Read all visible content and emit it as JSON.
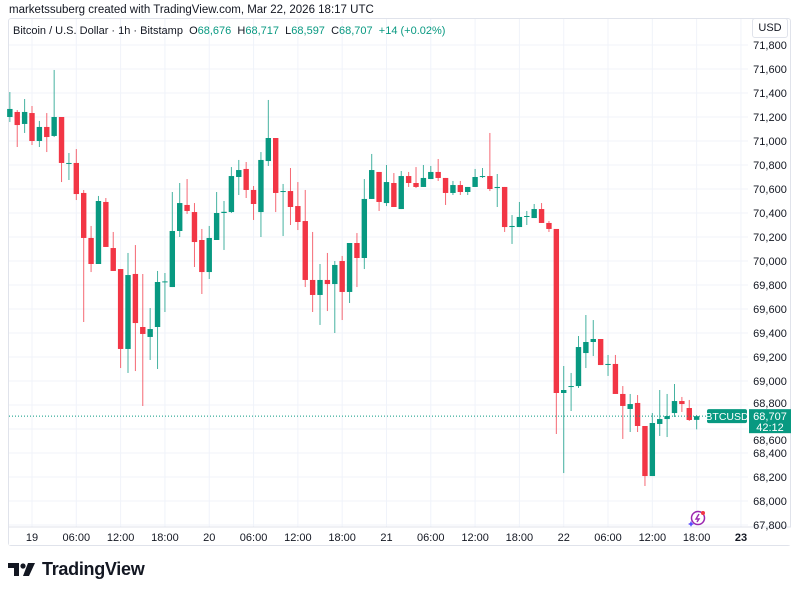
{
  "attribution": "marketssuberg created with TradingView.com, Mar 22, 2026 18:17 UTC",
  "legend": {
    "symbol": "Bitcoin / U.S. Dollar · 1h · Bitstamp",
    "o_label": "O",
    "o": "68,676",
    "h_label": "H",
    "h": "68,717",
    "l_label": "L",
    "l": "68,597",
    "c_label": "C",
    "c": "68,707",
    "change": "+14 (+0.02%)"
  },
  "currency_button": "USD",
  "last_price": {
    "symbol_tag": "BTCUSD",
    "price": "68,707",
    "countdown": "42:12"
  },
  "logo_text": "TradingView",
  "colors": {
    "up": "#089981",
    "down": "#f23645",
    "grid": "#f0f3fa",
    "text": "#131722",
    "accent_icon": "#9c27b0"
  },
  "icons": [
    "tradingview-logo-icon",
    "sparkle-lightning-icon"
  ],
  "chart_data": {
    "type": "candlestick",
    "interval": "1h",
    "ylim": [
      67800,
      71800
    ],
    "y_ticks": [
      "67,800",
      "68,000",
      "68,200",
      "68,400",
      "68,600",
      "68,800",
      "69,000",
      "69,200",
      "69,400",
      "69,600",
      "69,800",
      "70,000",
      "70,200",
      "70,400",
      "70,600",
      "70,800",
      "71,000",
      "71,200",
      "71,400",
      "71,600",
      "71,800"
    ],
    "x_ticks": [
      {
        "time": "2026-03-19T00:00",
        "label": "19"
      },
      {
        "time": "2026-03-19T06:00",
        "label": "06:00"
      },
      {
        "time": "2026-03-19T12:00",
        "label": "12:00"
      },
      {
        "time": "2026-03-19T18:00",
        "label": "18:00"
      },
      {
        "time": "2026-03-20T00:00",
        "label": "20"
      },
      {
        "time": "2026-03-20T06:00",
        "label": "06:00"
      },
      {
        "time": "2026-03-20T12:00",
        "label": "12:00"
      },
      {
        "time": "2026-03-20T18:00",
        "label": "18:00"
      },
      {
        "time": "2026-03-21T00:00",
        "label": "21"
      },
      {
        "time": "2026-03-21T06:00",
        "label": "06:00"
      },
      {
        "time": "2026-03-21T12:00",
        "label": "12:00"
      },
      {
        "time": "2026-03-21T18:00",
        "label": "18:00"
      },
      {
        "time": "2026-03-22T00:00",
        "label": "22"
      },
      {
        "time": "2026-03-22T06:00",
        "label": "06:00"
      },
      {
        "time": "2026-03-22T12:00",
        "label": "12:00"
      },
      {
        "time": "2026-03-22T18:00",
        "label": "18:00"
      },
      {
        "time": "2026-03-23T00:00",
        "label": "23"
      }
    ],
    "last_price": 68707,
    "grid": true,
    "columns": [
      "time",
      "open",
      "high",
      "low",
      "close"
    ],
    "candles": [
      [
        "2026-03-18T21:00",
        71200,
        71408,
        71158,
        71267
      ],
      [
        "2026-03-18T22:00",
        71242,
        71258,
        70950,
        71133
      ],
      [
        "2026-03-18T23:00",
        71142,
        71350,
        71067,
        71242
      ],
      [
        "2026-03-19T00:00",
        71233,
        71292,
        70967,
        71000
      ],
      [
        "2026-03-19T01:00",
        71000,
        71167,
        70950,
        71117
      ],
      [
        "2026-03-19T02:00",
        71117,
        71233,
        70908,
        71033
      ],
      [
        "2026-03-19T03:00",
        71042,
        71592,
        71033,
        71200
      ],
      [
        "2026-03-19T04:00",
        71200,
        71200,
        70658,
        70817
      ],
      [
        "2026-03-19T05:00",
        70817,
        70900,
        70675,
        70817
      ],
      [
        "2026-03-19T06:00",
        70817,
        70933,
        70508,
        70558
      ],
      [
        "2026-03-19T07:00",
        70567,
        70592,
        69492,
        70192
      ],
      [
        "2026-03-19T08:00",
        70192,
        70292,
        69908,
        69975
      ],
      [
        "2026-03-19T09:00",
        69975,
        70542,
        69975,
        70500
      ],
      [
        "2026-03-19T10:00",
        70492,
        70525,
        70117,
        70117
      ],
      [
        "2026-03-19T11:00",
        70108,
        70242,
        69917,
        69917
      ],
      [
        "2026-03-19T12:00",
        69933,
        69933,
        69108,
        69267
      ],
      [
        "2026-03-19T13:00",
        69267,
        70067,
        69067,
        69883
      ],
      [
        "2026-03-19T14:00",
        69892,
        70133,
        69083,
        69483
      ],
      [
        "2026-03-19T15:00",
        69450,
        69892,
        68792,
        69392
      ],
      [
        "2026-03-19T16:00",
        69367,
        69608,
        69175,
        69433
      ],
      [
        "2026-03-19T17:00",
        69450,
        69917,
        69100,
        69825
      ],
      [
        "2026-03-19T18:00",
        69825,
        69900,
        69575,
        69830
      ],
      [
        "2026-03-19T19:00",
        69783,
        70575,
        69783,
        70250
      ],
      [
        "2026-03-19T20:00",
        70250,
        70650,
        70200,
        70483
      ],
      [
        "2026-03-19T21:00",
        70467,
        70683,
        70392,
        70417
      ],
      [
        "2026-03-19T22:00",
        70408,
        70483,
        69950,
        70158
      ],
      [
        "2026-03-19T23:00",
        70175,
        70267,
        69725,
        69908
      ],
      [
        "2026-03-20T00:00",
        69908,
        70292,
        69850,
        70192
      ],
      [
        "2026-03-20T01:00",
        70175,
        70575,
        70175,
        70400
      ],
      [
        "2026-03-20T02:00",
        70400,
        70500,
        70092,
        70410
      ],
      [
        "2026-03-20T03:00",
        70408,
        70783,
        70400,
        70708
      ],
      [
        "2026-03-20T04:00",
        70700,
        70842,
        70550,
        70758
      ],
      [
        "2026-03-20T05:00",
        70767,
        70825,
        70525,
        70592
      ],
      [
        "2026-03-20T06:00",
        70592,
        70625,
        70342,
        70475
      ],
      [
        "2026-03-20T07:00",
        70408,
        70908,
        70200,
        70842
      ],
      [
        "2026-03-20T08:00",
        70833,
        71342,
        70792,
        71025
      ],
      [
        "2026-03-20T09:00",
        71025,
        71025,
        70408,
        70567
      ],
      [
        "2026-03-20T10:00",
        70575,
        70642,
        70208,
        70583
      ],
      [
        "2026-03-20T11:00",
        70583,
        70775,
        70300,
        70450
      ],
      [
        "2026-03-20T12:00",
        70458,
        70658,
        70258,
        70325
      ],
      [
        "2026-03-20T13:00",
        70333,
        70592,
        69783,
        69842
      ],
      [
        "2026-03-20T14:00",
        69842,
        70242,
        69575,
        69717
      ],
      [
        "2026-03-20T15:00",
        69717,
        69975,
        69467,
        69842
      ],
      [
        "2026-03-20T16:00",
        69842,
        70067,
        69583,
        69808
      ],
      [
        "2026-03-20T17:00",
        69808,
        70000,
        69400,
        69967
      ],
      [
        "2026-03-20T18:00",
        70000,
        70042,
        69508,
        69742
      ],
      [
        "2026-03-20T19:00",
        69742,
        70150,
        69650,
        70150
      ],
      [
        "2026-03-20T20:00",
        70150,
        70233,
        69783,
        70025
      ],
      [
        "2026-03-20T21:00",
        70025,
        70683,
        69933,
        70517
      ],
      [
        "2026-03-20T22:00",
        70517,
        70892,
        70517,
        70758
      ],
      [
        "2026-03-20T23:00",
        70742,
        70742,
        70417,
        70492
      ],
      [
        "2026-03-21T00:00",
        70483,
        70800,
        70458,
        70658
      ],
      [
        "2026-03-21T01:00",
        70650,
        70733,
        70450,
        70450
      ],
      [
        "2026-03-21T02:00",
        70433,
        70750,
        70433,
        70708
      ],
      [
        "2026-03-21T03:00",
        70708,
        70742,
        70617,
        70650
      ],
      [
        "2026-03-21T04:00",
        70650,
        70783,
        70608,
        70617
      ],
      [
        "2026-03-21T05:00",
        70617,
        70800,
        70617,
        70692
      ],
      [
        "2026-03-21T06:00",
        70683,
        70792,
        70683,
        70742
      ],
      [
        "2026-03-21T07:00",
        70742,
        70850,
        70667,
        70692
      ],
      [
        "2026-03-21T08:00",
        70692,
        70692,
        70467,
        70567
      ],
      [
        "2026-03-21T09:00",
        70567,
        70667,
        70550,
        70633
      ],
      [
        "2026-03-21T10:00",
        70633,
        70667,
        70550,
        70575
      ],
      [
        "2026-03-21T11:00",
        70575,
        70617,
        70550,
        70617
      ],
      [
        "2026-03-21T12:00",
        70617,
        70767,
        70617,
        70700
      ],
      [
        "2026-03-21T13:00",
        70700,
        70775,
        70692,
        70708
      ],
      [
        "2026-03-21T14:00",
        70708,
        71067,
        70583,
        70600
      ],
      [
        "2026-03-21T15:00",
        70608,
        70725,
        70450,
        70617
      ],
      [
        "2026-03-21T16:00",
        70617,
        70617,
        70242,
        70283
      ],
      [
        "2026-03-21T17:00",
        70283,
        70383,
        70142,
        70292
      ],
      [
        "2026-03-21T18:00",
        70283,
        70492,
        70283,
        70367
      ],
      [
        "2026-03-21T19:00",
        70367,
        70417,
        70300,
        70375
      ],
      [
        "2026-03-21T20:00",
        70358,
        70475,
        70358,
        70433
      ],
      [
        "2026-03-21T21:00",
        70433,
        70483,
        70317,
        70317
      ],
      [
        "2026-03-21T22:00",
        70317,
        70333,
        70242,
        70267
      ],
      [
        "2026-03-21T23:00",
        70267,
        70267,
        68558,
        68900
      ],
      [
        "2026-03-22T00:00",
        68900,
        69125,
        68233,
        68925
      ],
      [
        "2026-03-22T01:00",
        68950,
        69067,
        68750,
        68958
      ],
      [
        "2026-03-22T02:00",
        68958,
        69375,
        68942,
        69283
      ],
      [
        "2026-03-22T03:00",
        69233,
        69550,
        69108,
        69325
      ],
      [
        "2026-03-22T04:00",
        69325,
        69508,
        69208,
        69350
      ],
      [
        "2026-03-22T05:00",
        69350,
        69350,
        69133,
        69133
      ],
      [
        "2026-03-22T06:00",
        69142,
        69217,
        69042,
        69142
      ],
      [
        "2026-03-22T07:00",
        69142,
        69217,
        68892,
        68892
      ],
      [
        "2026-03-22T08:00",
        68892,
        68958,
        68517,
        68792
      ],
      [
        "2026-03-22T09:00",
        68767,
        68892,
        68575,
        68808
      ],
      [
        "2026-03-22T10:00",
        68817,
        68883,
        68575,
        68625
      ],
      [
        "2026-03-22T11:00",
        68625,
        68625,
        68125,
        68208
      ],
      [
        "2026-03-22T12:00",
        68208,
        68733,
        68208,
        68650
      ],
      [
        "2026-03-22T13:00",
        68642,
        68925,
        68542,
        68683
      ],
      [
        "2026-03-22T14:00",
        68683,
        68892,
        68533,
        68708
      ],
      [
        "2026-03-22T15:00",
        68733,
        68975,
        68700,
        68833
      ],
      [
        "2026-03-22T16:00",
        68833,
        68867,
        68742,
        68808
      ],
      [
        "2026-03-22T17:00",
        68775,
        68842,
        68667,
        68675
      ],
      [
        "2026-03-22T18:00",
        68676,
        68717,
        68597,
        68707
      ]
    ]
  }
}
